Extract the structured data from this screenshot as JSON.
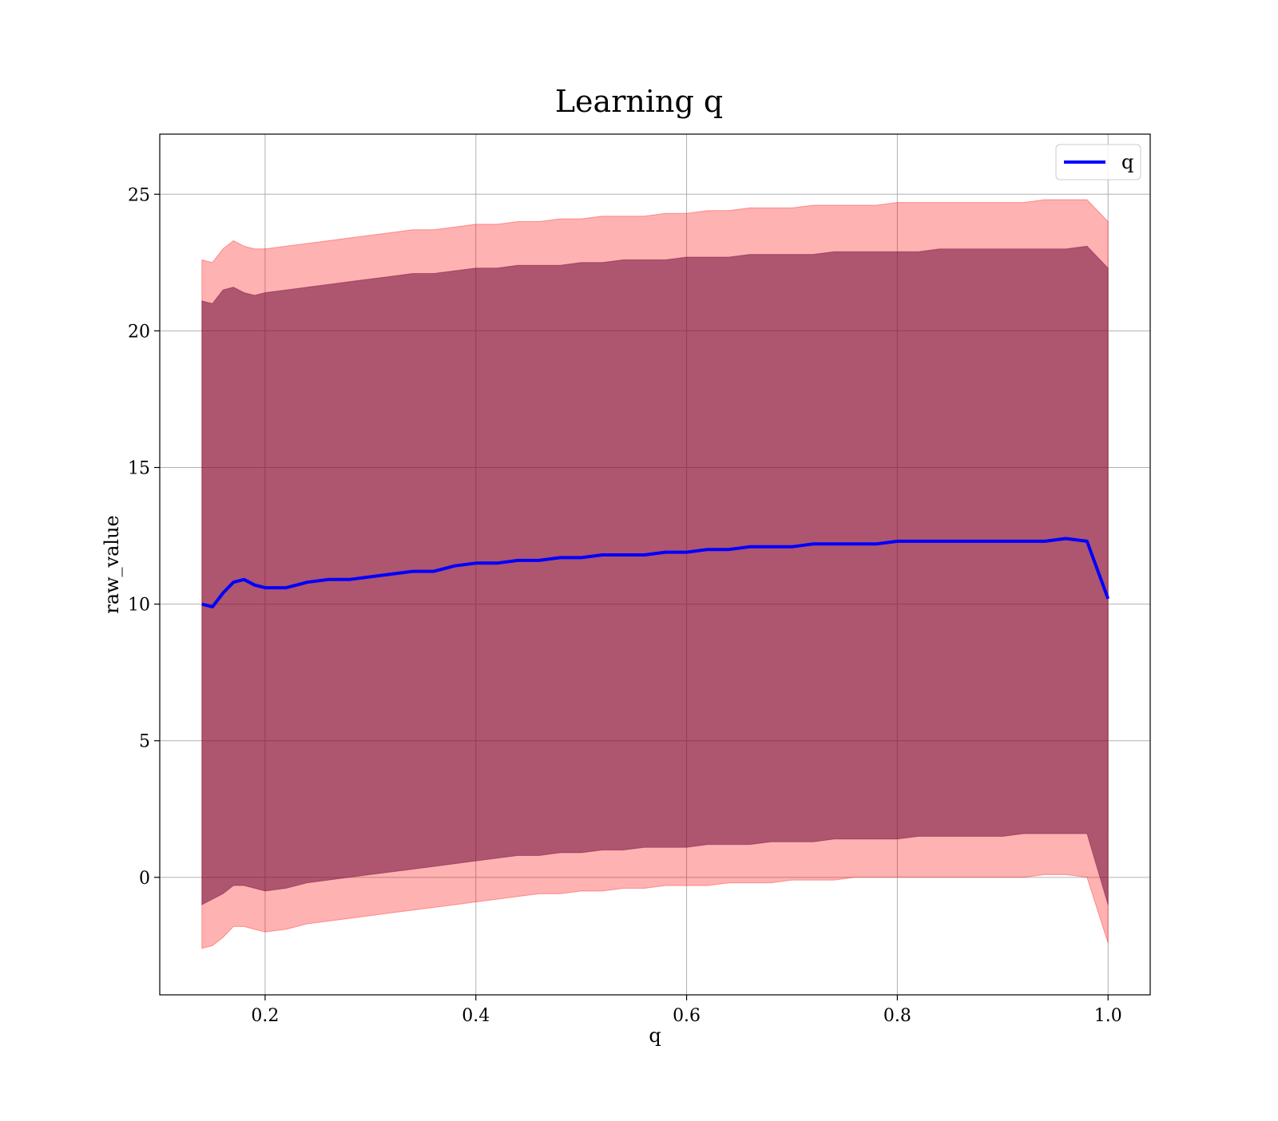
{
  "chart_data": {
    "type": "line",
    "title": "Learning q",
    "xlabel": "q",
    "ylabel": "raw_value",
    "xlim": [
      0.1,
      1.04
    ],
    "ylim": [
      -4.3,
      27.2
    ],
    "xticks": [
      0.2,
      0.4,
      0.6,
      0.8,
      1.0
    ],
    "xtick_labels": [
      "0.2",
      "0.4",
      "0.6",
      "0.8",
      "1.0"
    ],
    "yticks": [
      0,
      5,
      10,
      15,
      20,
      25
    ],
    "ytick_labels": [
      "0",
      "5",
      "10",
      "15",
      "20",
      "25"
    ],
    "grid": true,
    "legend_position": "top-right",
    "colors": {
      "line": "#0000ff",
      "inner_band": "#6b0a38",
      "outer_band": "#ff0000",
      "grid": "#b0b0b0"
    },
    "series": [
      {
        "name": "q",
        "x": [
          0.14,
          0.15,
          0.16,
          0.17,
          0.18,
          0.19,
          0.2,
          0.22,
          0.24,
          0.26,
          0.28,
          0.3,
          0.32,
          0.34,
          0.36,
          0.38,
          0.4,
          0.42,
          0.44,
          0.46,
          0.48,
          0.5,
          0.52,
          0.54,
          0.56,
          0.58,
          0.6,
          0.62,
          0.64,
          0.66,
          0.68,
          0.7,
          0.72,
          0.74,
          0.76,
          0.78,
          0.8,
          0.82,
          0.84,
          0.86,
          0.88,
          0.9,
          0.92,
          0.94,
          0.96,
          0.98,
          1.0
        ],
        "y": [
          10.0,
          9.9,
          10.4,
          10.8,
          10.9,
          10.7,
          10.6,
          10.6,
          10.8,
          10.9,
          10.9,
          11.0,
          11.1,
          11.2,
          11.2,
          11.4,
          11.5,
          11.5,
          11.6,
          11.6,
          11.7,
          11.7,
          11.8,
          11.8,
          11.8,
          11.9,
          11.9,
          12.0,
          12.0,
          12.1,
          12.1,
          12.1,
          12.2,
          12.2,
          12.2,
          12.2,
          12.3,
          12.3,
          12.3,
          12.3,
          12.3,
          12.3,
          12.3,
          12.3,
          12.4,
          12.3,
          10.2
        ],
        "inner_band": {
          "upper": [
            21.1,
            21.0,
            21.5,
            21.6,
            21.4,
            21.3,
            21.4,
            21.5,
            21.6,
            21.7,
            21.8,
            21.9,
            22.0,
            22.1,
            22.1,
            22.2,
            22.3,
            22.3,
            22.4,
            22.4,
            22.4,
            22.5,
            22.5,
            22.6,
            22.6,
            22.6,
            22.7,
            22.7,
            22.7,
            22.8,
            22.8,
            22.8,
            22.8,
            22.9,
            22.9,
            22.9,
            22.9,
            22.9,
            23.0,
            23.0,
            23.0,
            23.0,
            23.0,
            23.0,
            23.0,
            23.1,
            22.3
          ],
          "lower": [
            -1.0,
            -0.8,
            -0.6,
            -0.3,
            -0.3,
            -0.4,
            -0.5,
            -0.4,
            -0.2,
            -0.1,
            0.0,
            0.1,
            0.2,
            0.3,
            0.4,
            0.5,
            0.6,
            0.7,
            0.8,
            0.8,
            0.9,
            0.9,
            1.0,
            1.0,
            1.1,
            1.1,
            1.1,
            1.2,
            1.2,
            1.2,
            1.3,
            1.3,
            1.3,
            1.4,
            1.4,
            1.4,
            1.4,
            1.5,
            1.5,
            1.5,
            1.5,
            1.5,
            1.6,
            1.6,
            1.6,
            1.6,
            -1.0
          ]
        },
        "outer_band": {
          "upper": [
            22.6,
            22.5,
            23.0,
            23.3,
            23.1,
            23.0,
            23.0,
            23.1,
            23.2,
            23.3,
            23.4,
            23.5,
            23.6,
            23.7,
            23.7,
            23.8,
            23.9,
            23.9,
            24.0,
            24.0,
            24.1,
            24.1,
            24.2,
            24.2,
            24.2,
            24.3,
            24.3,
            24.4,
            24.4,
            24.5,
            24.5,
            24.5,
            24.6,
            24.6,
            24.6,
            24.6,
            24.7,
            24.7,
            24.7,
            24.7,
            24.7,
            24.7,
            24.7,
            24.8,
            24.8,
            24.8,
            24.0
          ],
          "lower": [
            -2.6,
            -2.5,
            -2.2,
            -1.8,
            -1.8,
            -1.9,
            -2.0,
            -1.9,
            -1.7,
            -1.6,
            -1.5,
            -1.4,
            -1.3,
            -1.2,
            -1.1,
            -1.0,
            -0.9,
            -0.8,
            -0.7,
            -0.6,
            -0.6,
            -0.5,
            -0.5,
            -0.4,
            -0.4,
            -0.3,
            -0.3,
            -0.3,
            -0.2,
            -0.2,
            -0.2,
            -0.1,
            -0.1,
            -0.1,
            0.0,
            0.0,
            0.0,
            0.0,
            0.0,
            0.0,
            0.0,
            0.0,
            0.0,
            0.1,
            0.1,
            0.0,
            -2.4
          ]
        }
      }
    ]
  }
}
